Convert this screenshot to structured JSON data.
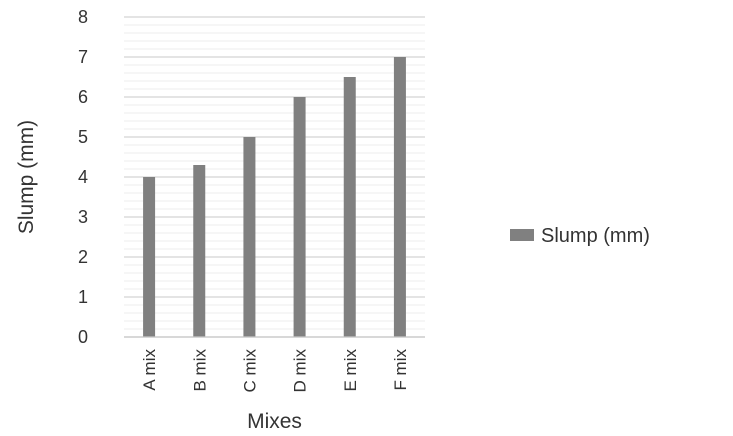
{
  "chart_data": {
    "type": "bar",
    "title": "",
    "xlabel": "Mixes",
    "ylabel": "Slump (mm)",
    "categories": [
      "A mix",
      "B mix",
      "C mix",
      "D mix",
      "E mix",
      "F mix"
    ],
    "series": [
      {
        "name": "Slump (mm)",
        "values": [
          4,
          4.3,
          5,
          6,
          6.5,
          7
        ],
        "color": "#808080"
      }
    ],
    "ylim": [
      0,
      8
    ],
    "yticks": [
      "0",
      "1",
      "2",
      "3",
      "4",
      "5",
      "6",
      "7",
      "8"
    ],
    "grid": "on",
    "legend_position": "right"
  }
}
